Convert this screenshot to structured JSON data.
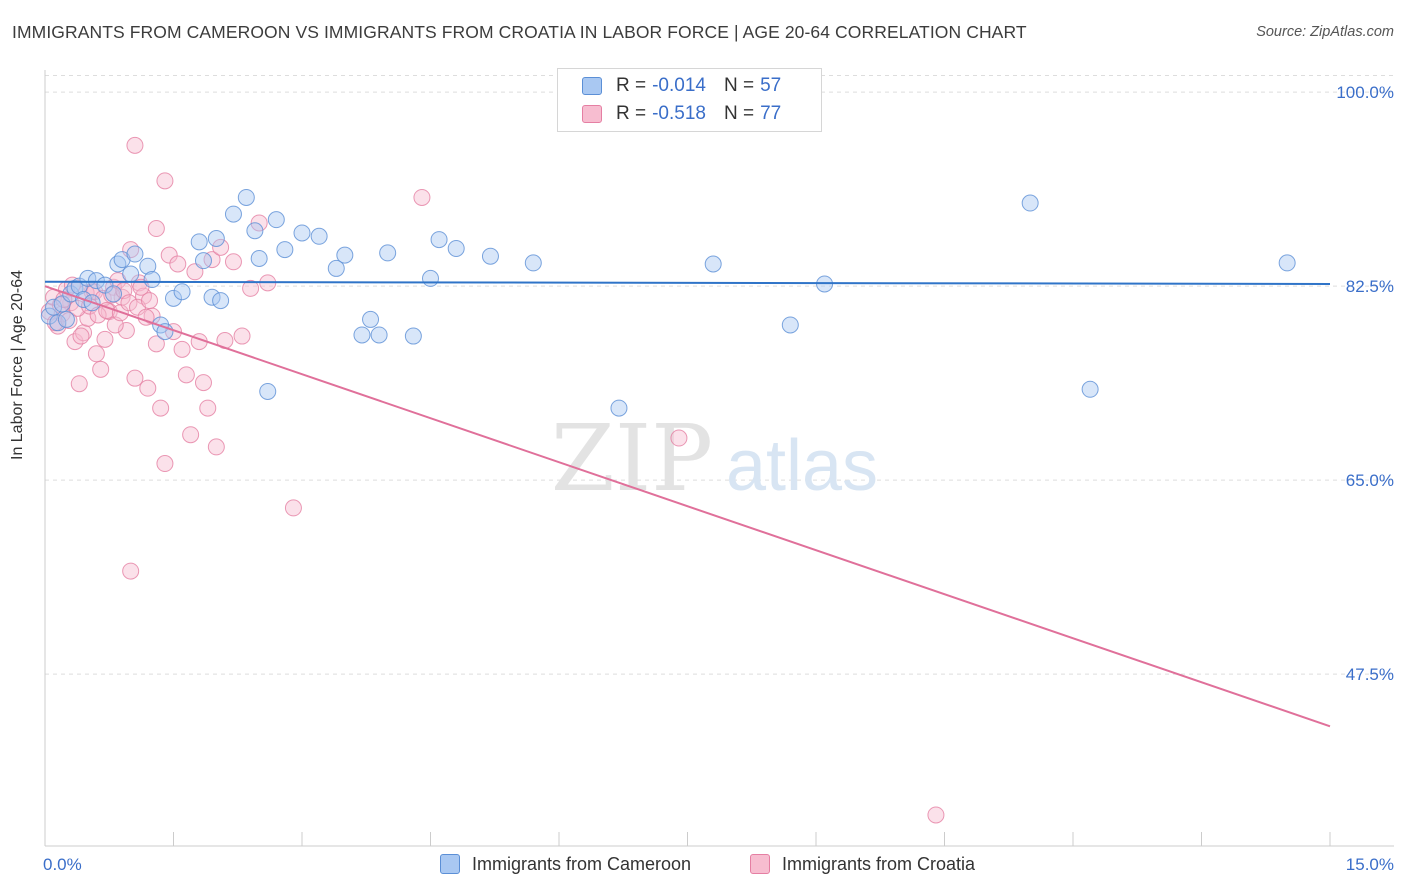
{
  "title": "IMMIGRANTS FROM CAMEROON VS IMMIGRANTS FROM CROATIA IN LABOR FORCE | AGE 20-64 CORRELATION CHART",
  "source": "Source: ZipAtlas.com",
  "watermark": {
    "zip": "ZIP",
    "atlas": "atlas"
  },
  "legend": {
    "r_label": "R =",
    "n_label": "N =",
    "rows": [
      {
        "name": "Immigrants from Cameroon",
        "r": "-0.014",
        "n": "57",
        "fill": "#a9c8f2",
        "stroke": "#5b8fd6"
      },
      {
        "name": "Immigrants from Croatia",
        "r": "-0.518",
        "n": "77",
        "fill": "#f7bdd0",
        "stroke": "#e57fa3"
      }
    ]
  },
  "colors": {
    "cameroon_line": "#2f74c8",
    "croatia_line": "#e0709a",
    "tick_text": "#3a6ec9",
    "grid": "#dddddd",
    "axis": "#cccccc"
  },
  "chart_data": {
    "type": "scatter",
    "xlabel": "",
    "ylabel": "In Labor Force | Age 20-64",
    "xlim": [
      0,
      15
    ],
    "ylim": [
      32,
      102
    ],
    "x_tick_labels": [
      "0.0%",
      "15.0%"
    ],
    "y_ticks": [
      47.5,
      65.0,
      82.5,
      100.0
    ],
    "y_tick_labels": [
      "47.5%",
      "65.0%",
      "82.5%",
      "100.0%"
    ],
    "grid": true,
    "legend_placement": "top-center",
    "series": [
      {
        "name": "Immigrants from Cameroon",
        "trend": {
          "x": [
            0.0,
            15.0
          ],
          "y": [
            82.9,
            82.7
          ]
        },
        "points": [
          [
            0.05,
            79.8
          ],
          [
            0.1,
            80.6
          ],
          [
            0.15,
            79.2
          ],
          [
            0.2,
            80.9
          ],
          [
            0.3,
            81.8
          ],
          [
            0.35,
            82.3
          ],
          [
            0.4,
            82.5
          ],
          [
            0.45,
            81.3
          ],
          [
            0.5,
            83.2
          ],
          [
            0.6,
            83.0
          ],
          [
            0.7,
            82.6
          ],
          [
            0.8,
            81.8
          ],
          [
            0.85,
            84.5
          ],
          [
            0.9,
            84.9
          ],
          [
            1.0,
            83.6
          ],
          [
            1.05,
            85.4
          ],
          [
            1.2,
            84.3
          ],
          [
            1.25,
            83.1
          ],
          [
            1.35,
            79.0
          ],
          [
            1.4,
            78.4
          ],
          [
            1.5,
            81.4
          ],
          [
            1.6,
            82.0
          ],
          [
            1.8,
            86.5
          ],
          [
            1.85,
            84.8
          ],
          [
            1.95,
            81.5
          ],
          [
            2.0,
            86.8
          ],
          [
            2.05,
            81.2
          ],
          [
            2.2,
            89.0
          ],
          [
            2.35,
            90.5
          ],
          [
            2.45,
            87.5
          ],
          [
            2.5,
            85.0
          ],
          [
            2.6,
            73.0
          ],
          [
            2.7,
            88.5
          ],
          [
            2.8,
            85.8
          ],
          [
            3.0,
            87.3
          ],
          [
            3.2,
            87.0
          ],
          [
            3.4,
            84.1
          ],
          [
            3.5,
            85.3
          ],
          [
            3.7,
            78.1
          ],
          [
            3.8,
            79.5
          ],
          [
            3.9,
            78.1
          ],
          [
            4.0,
            85.5
          ],
          [
            4.3,
            78.0
          ],
          [
            4.5,
            83.2
          ],
          [
            4.6,
            86.7
          ],
          [
            4.8,
            85.9
          ],
          [
            5.2,
            85.2
          ],
          [
            5.7,
            84.6
          ],
          [
            6.7,
            71.5
          ],
          [
            7.8,
            84.5
          ],
          [
            8.7,
            79.0
          ],
          [
            9.1,
            82.7
          ],
          [
            11.5,
            90.0
          ],
          [
            12.2,
            73.2
          ],
          [
            14.5,
            84.6
          ],
          [
            0.25,
            79.5
          ],
          [
            0.55,
            81.0
          ]
        ]
      },
      {
        "name": "Immigrants from Croatia",
        "trend": {
          "x": [
            0.0,
            15.0
          ],
          "y": [
            82.5,
            42.8
          ]
        },
        "points": [
          [
            0.05,
            80.2
          ],
          [
            0.1,
            81.5
          ],
          [
            0.15,
            78.9
          ],
          [
            0.2,
            80.0
          ],
          [
            0.25,
            82.2
          ],
          [
            0.3,
            81.0
          ],
          [
            0.35,
            77.5
          ],
          [
            0.4,
            73.7
          ],
          [
            0.45,
            78.3
          ],
          [
            0.5,
            79.6
          ],
          [
            0.55,
            82.0
          ],
          [
            0.6,
            76.4
          ],
          [
            0.65,
            75.0
          ],
          [
            0.7,
            77.7
          ],
          [
            0.75,
            80.2
          ],
          [
            0.8,
            82.4
          ],
          [
            0.85,
            83.0
          ],
          [
            0.9,
            81.5
          ],
          [
            0.95,
            78.5
          ],
          [
            1.0,
            85.8
          ],
          [
            1.05,
            74.2
          ],
          [
            1.1,
            82.8
          ],
          [
            1.15,
            81.6
          ],
          [
            1.2,
            73.3
          ],
          [
            1.25,
            79.8
          ],
          [
            1.3,
            77.3
          ],
          [
            1.35,
            71.5
          ],
          [
            1.4,
            66.5
          ],
          [
            1.45,
            85.3
          ],
          [
            1.5,
            78.4
          ],
          [
            1.55,
            84.5
          ],
          [
            1.6,
            76.8
          ],
          [
            1.65,
            74.5
          ],
          [
            1.7,
            69.1
          ],
          [
            1.75,
            83.8
          ],
          [
            1.8,
            77.5
          ],
          [
            1.85,
            73.8
          ],
          [
            1.9,
            71.5
          ],
          [
            1.95,
            84.9
          ],
          [
            2.0,
            68.0
          ],
          [
            2.05,
            86.0
          ],
          [
            2.1,
            77.6
          ],
          [
            2.2,
            84.7
          ],
          [
            2.3,
            78.0
          ],
          [
            2.4,
            82.3
          ],
          [
            2.5,
            88.2
          ],
          [
            2.6,
            82.8
          ],
          [
            1.0,
            56.8
          ],
          [
            1.05,
            95.2
          ],
          [
            1.4,
            92.0
          ],
          [
            1.3,
            87.7
          ],
          [
            2.9,
            62.5
          ],
          [
            4.4,
            90.5
          ],
          [
            7.4,
            68.8
          ],
          [
            10.4,
            34.8
          ],
          [
            0.12,
            79.2
          ],
          [
            0.18,
            80.8
          ],
          [
            0.22,
            81.3
          ],
          [
            0.28,
            79.4
          ],
          [
            0.32,
            82.6
          ],
          [
            0.38,
            80.5
          ],
          [
            0.42,
            78.0
          ],
          [
            0.48,
            81.9
          ],
          [
            0.52,
            80.7
          ],
          [
            0.58,
            82.0
          ],
          [
            0.62,
            79.9
          ],
          [
            0.68,
            81.4
          ],
          [
            0.72,
            80.3
          ],
          [
            0.78,
            81.7
          ],
          [
            0.82,
            79.0
          ],
          [
            0.88,
            80.1
          ],
          [
            0.92,
            82.1
          ],
          [
            0.98,
            81.0
          ],
          [
            1.08,
            80.6
          ],
          [
            1.12,
            82.4
          ],
          [
            1.18,
            79.7
          ],
          [
            1.22,
            81.2
          ]
        ]
      }
    ]
  }
}
